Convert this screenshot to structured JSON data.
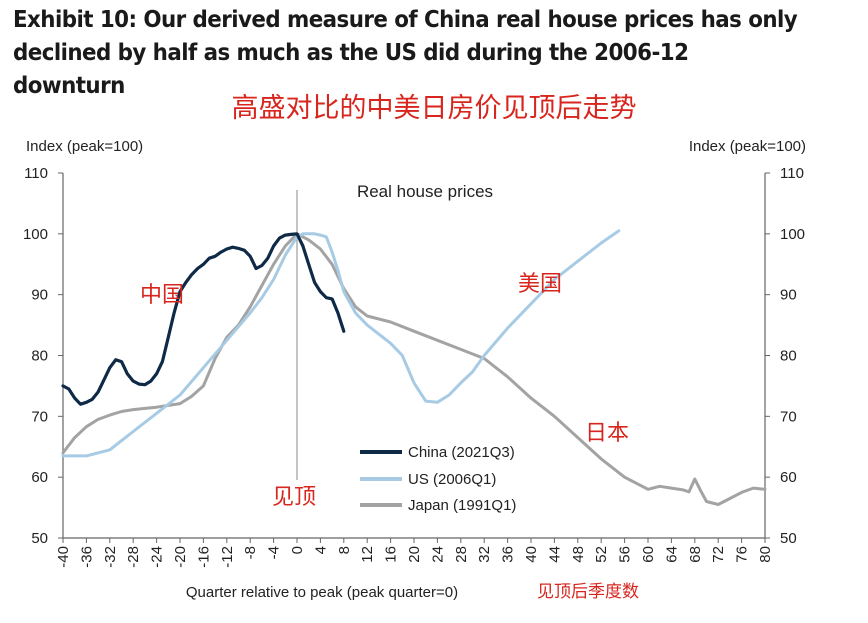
{
  "title": "Exhibit 10: Our derived measure of China real house prices has only declined by half as much as the US did during the 2006-12 downturn",
  "subtitle_cn": "高盛对比的中美日房价见顶后走势",
  "chart_data": {
    "type": "line",
    "title": "Real house prices",
    "ylabel_left": "Index (peak=100)",
    "ylabel_right": "Index (peak=100)",
    "xlabel": "Quarter relative to peak (peak quarter=0)",
    "xlabel_cn": "见顶后季度数",
    "xlim": [
      -40,
      80
    ],
    "ylim": [
      50,
      110
    ],
    "x_ticks": [
      -40,
      -36,
      -32,
      -28,
      -24,
      -20,
      -16,
      -12,
      -8,
      -4,
      0,
      4,
      8,
      12,
      16,
      20,
      24,
      28,
      32,
      36,
      40,
      44,
      48,
      52,
      56,
      60,
      64,
      68,
      72,
      76,
      80
    ],
    "y_ticks": [
      50,
      60,
      70,
      80,
      90,
      100,
      110
    ],
    "grid": false,
    "legend_position": "bottom-center",
    "peak_line_x": 0,
    "series": [
      {
        "name": "China (2021Q3)",
        "color": "#0e2a47",
        "x": [
          -40,
          -39,
          -38,
          -37,
          -36,
          -35,
          -34,
          -33,
          -32,
          -31,
          -30,
          -29,
          -28,
          -27,
          -26,
          -25,
          -24,
          -23,
          -22,
          -21,
          -20,
          -19,
          -18,
          -17,
          -16,
          -15,
          -14,
          -13,
          -12,
          -11,
          -10,
          -9,
          -8,
          -7,
          -6,
          -5,
          -4,
          -3,
          -2,
          -1,
          0,
          1,
          2,
          3,
          4,
          5,
          6,
          7,
          8
        ],
        "y": [
          75,
          74.5,
          73,
          72,
          72.3,
          72.8,
          74,
          76,
          78,
          79.3,
          79,
          77,
          75.8,
          75.3,
          75.2,
          75.8,
          77,
          79,
          83,
          87,
          90.5,
          92,
          93.3,
          94.3,
          95,
          96,
          96.3,
          97,
          97.5,
          97.8,
          97.6,
          97.3,
          96.3,
          94.3,
          94.8,
          96,
          98,
          99.3,
          99.8,
          99.9,
          100,
          98,
          95,
          92,
          90.5,
          89.5,
          89.3,
          87,
          84
        ]
      },
      {
        "name": "US (2006Q1)",
        "color": "#a7cbe4",
        "x": [
          -40,
          -36,
          -32,
          -28,
          -24,
          -20,
          -16,
          -12,
          -8,
          -6,
          -4,
          -2,
          0,
          1,
          2,
          3,
          4,
          5,
          6,
          7,
          8,
          10,
          12,
          14,
          16,
          18,
          20,
          22,
          24,
          26,
          28,
          30,
          32,
          36,
          40,
          44,
          48,
          52,
          55
        ],
        "y": [
          63.5,
          63.5,
          64.5,
          67.5,
          70.5,
          73.5,
          78,
          82.5,
          87,
          89.5,
          92.5,
          96.5,
          99.5,
          100,
          100,
          100,
          99.8,
          99.5,
          97,
          94,
          90.5,
          87,
          85,
          83.5,
          82,
          80,
          75.5,
          72.5,
          72.3,
          73.5,
          75.5,
          77.3,
          80,
          84.5,
          88.5,
          92.5,
          95.5,
          98.5,
          100.5
        ]
      },
      {
        "name": "Japan (1991Q1)",
        "color": "#a3a3a3",
        "x": [
          -40,
          -38,
          -36,
          -34,
          -32,
          -30,
          -28,
          -26,
          -24,
          -22,
          -20,
          -18,
          -16,
          -14,
          -12,
          -10,
          -8,
          -6,
          -4,
          -2,
          0,
          2,
          4,
          6,
          8,
          10,
          12,
          16,
          20,
          24,
          28,
          32,
          36,
          40,
          44,
          48,
          52,
          56,
          60,
          62,
          64,
          66,
          67,
          68,
          69,
          70,
          72,
          74,
          76,
          78,
          80
        ],
        "y": [
          64,
          66.5,
          68.3,
          69.5,
          70.2,
          70.8,
          71.1,
          71.3,
          71.5,
          71.8,
          72.1,
          73.3,
          75,
          79.5,
          83,
          85,
          88,
          91.5,
          95,
          98,
          100,
          99,
          97.5,
          95,
          91,
          88,
          86.5,
          85.5,
          84,
          82.5,
          81,
          79.5,
          76.5,
          73,
          70,
          66.5,
          63,
          60,
          58,
          58.5,
          58.2,
          57.9,
          57.6,
          59.7,
          57.8,
          56,
          55.5,
          56.5,
          57.5,
          58.2,
          58
        ]
      }
    ],
    "annotations_cn": {
      "china": "中国",
      "us": "美国",
      "japan": "日本",
      "peak": "见顶"
    }
  }
}
